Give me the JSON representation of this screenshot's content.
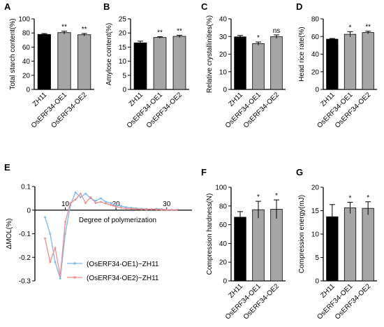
{
  "colors": {
    "control_bar": "#000000",
    "oe_bar": "#a6a6a6",
    "oe1_line": "#7ab8e8",
    "oe2_line": "#f08c8c",
    "axis": "#000000"
  },
  "chart_data": [
    {
      "panel": "A",
      "type": "bar",
      "categories": [
        "ZH11",
        "OsERF34-OE1",
        "OsERF34-OE2"
      ],
      "values": [
        78,
        80.5,
        77.5
      ],
      "errors": [
        1.2,
        2.0,
        1.8
      ],
      "significance": [
        "",
        "**",
        "**"
      ],
      "ylabel": "Total starch content(%)",
      "ylim": [
        0,
        100
      ],
      "yticks": [
        0,
        20,
        40,
        60,
        80,
        100
      ]
    },
    {
      "panel": "B",
      "type": "bar",
      "categories": [
        "ZH11",
        "OsERF34-OE1",
        "OsERF34-OE2"
      ],
      "values": [
        16.5,
        18.4,
        18.8
      ],
      "errors": [
        0.6,
        0.3,
        0.4
      ],
      "significance": [
        "",
        "**",
        "**"
      ],
      "ylabel": "Amylose content(%)",
      "ylim": [
        0,
        25
      ],
      "yticks": [
        0,
        5,
        10,
        15,
        20,
        25
      ]
    },
    {
      "panel": "C",
      "type": "bar",
      "categories": [
        "ZH11",
        "OsERF34-OE1",
        "OsERF34-OE2"
      ],
      "values": [
        29.8,
        26.0,
        29.9
      ],
      "errors": [
        0.8,
        0.9,
        1.0
      ],
      "significance": [
        "",
        "*",
        "ns"
      ],
      "ylabel": "Relative crystallinities(%)",
      "ylim": [
        0,
        40
      ],
      "yticks": [
        0,
        10,
        20,
        30,
        40
      ]
    },
    {
      "panel": "D",
      "type": "bar",
      "categories": [
        "ZH11",
        "OsERF34-OE1",
        "OsERF34-OE2"
      ],
      "values": [
        57,
        62.5,
        64.5
      ],
      "errors": [
        0.8,
        3.0,
        1.5
      ],
      "significance": [
        "",
        "*",
        "**"
      ],
      "ylabel": "Head rice rate(%)",
      "ylim": [
        0,
        80
      ],
      "yticks": [
        0,
        20,
        40,
        60,
        80
      ]
    },
    {
      "panel": "E",
      "type": "line",
      "xlabel": "Degree of polymerization",
      "ylabel": "ΔMOL(%)",
      "xlim": [
        4,
        35
      ],
      "ylim": [
        -0.3,
        0.1
      ],
      "xticks": [
        10,
        20,
        30
      ],
      "yticks": [
        -0.3,
        -0.2,
        -0.1,
        0.0,
        0.1
      ],
      "series": [
        {
          "name": "(OsERF34-OE1)−ZH11",
          "x": [
            6,
            7,
            8,
            9,
            10,
            11,
            12,
            13,
            14,
            15,
            16,
            17,
            18,
            19,
            20,
            21,
            22,
            23,
            24,
            25,
            26,
            27,
            28,
            29,
            30,
            31,
            32
          ],
          "y": [
            -0.03,
            -0.1,
            -0.22,
            -0.29,
            -0.1,
            0.02,
            0.075,
            0.055,
            0.07,
            0.05,
            0.04,
            0.05,
            0.035,
            0.03,
            0.02,
            0.018,
            0.012,
            0.01,
            0.008,
            0.006,
            0.005,
            0.004,
            0.006,
            0.004,
            0.002,
            0.002,
            0.001
          ]
        },
        {
          "name": "(OsERF34-OE2)−ZH11",
          "x": [
            6,
            7,
            8,
            9,
            10,
            11,
            12,
            13,
            14,
            15,
            16,
            17,
            18,
            19,
            20,
            21,
            22,
            23,
            24,
            25,
            26,
            27,
            28,
            29,
            30,
            31,
            32
          ],
          "y": [
            -0.12,
            -0.22,
            -0.16,
            -0.28,
            -0.05,
            0.03,
            0.045,
            0.07,
            0.03,
            0.055,
            0.03,
            0.035,
            0.028,
            0.022,
            0.015,
            0.01,
            0.007,
            0.006,
            0.005,
            0.004,
            0.003,
            0.004,
            0.003,
            0.002,
            0.002,
            0.001,
            0.001
          ]
        }
      ]
    },
    {
      "panel": "F",
      "type": "bar",
      "categories": [
        "ZH11",
        "OsERF34-OE1",
        "OsERF34-OE2"
      ],
      "values": [
        68,
        76,
        76.5
      ],
      "errors": [
        6,
        9,
        10
      ],
      "significance": [
        "",
        "*",
        "*"
      ],
      "ylabel": "Compression hardness(N)",
      "ylim": [
        0,
        100
      ],
      "yticks": [
        0,
        20,
        40,
        60,
        80,
        100
      ]
    },
    {
      "panel": "G",
      "type": "bar",
      "categories": [
        "ZH11",
        "OsERF34-OE1",
        "OsERF34-OE2"
      ],
      "values": [
        13.7,
        15.6,
        15.5
      ],
      "errors": [
        2.6,
        1.2,
        1.4
      ],
      "significance": [
        "",
        "*",
        "*"
      ],
      "ylabel": "Compression energy(mJ)",
      "ylim": [
        0,
        20
      ],
      "yticks": [
        0,
        5,
        10,
        15,
        20
      ]
    }
  ]
}
